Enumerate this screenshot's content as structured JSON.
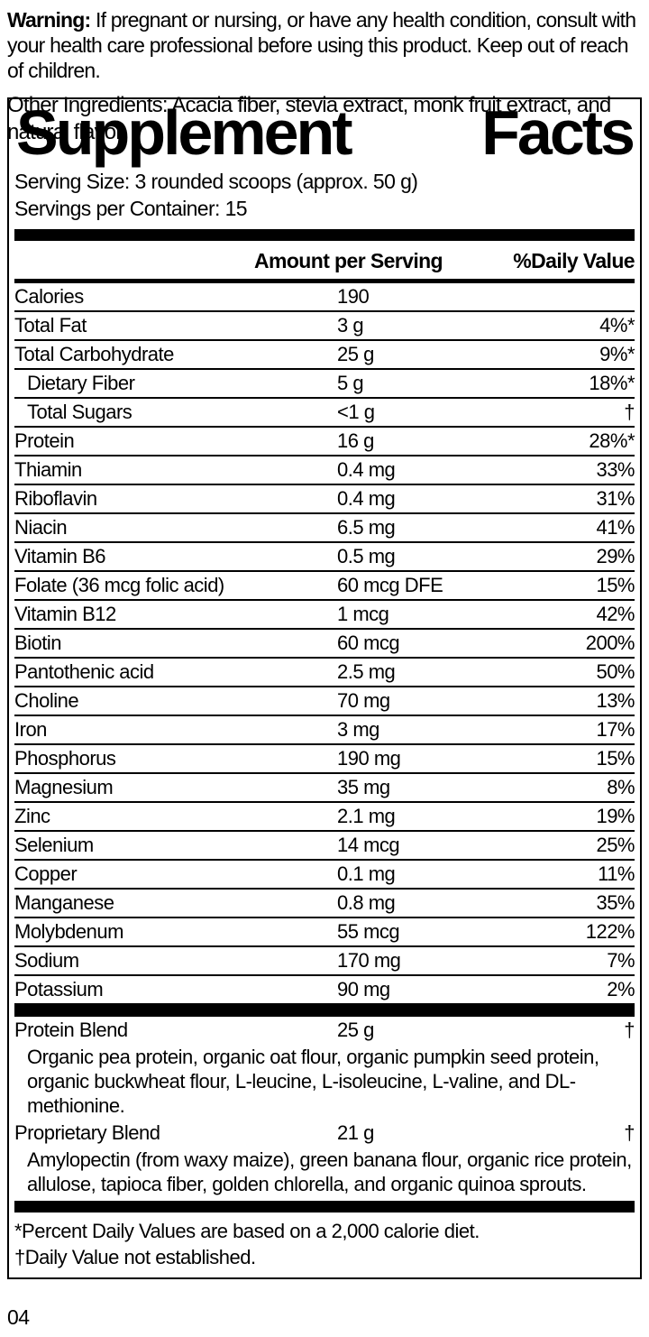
{
  "warning": {
    "label": "Warning:",
    "text": "If pregnant or nursing, or have any health condition, consult with your health care professional before using this product. Keep out of reach of children."
  },
  "panel": {
    "title_left": "Supplement",
    "title_right": "Facts",
    "serving_size": "Serving Size: 3 rounded scoops (approx. 50 g)",
    "servings_per_container": "Servings per Container: 15",
    "header": {
      "amount": "Amount per Serving",
      "daily_value": "%Daily Value"
    },
    "rows": [
      {
        "name": "Calories",
        "amount": "190",
        "dv": ""
      },
      {
        "name": "Total Fat",
        "amount": "3 g",
        "dv": "4%*"
      },
      {
        "name": "Total Carbohydrate",
        "amount": "25 g",
        "dv": "9%*"
      },
      {
        "name": "Dietary Fiber",
        "amount": "5 g",
        "dv": "18%*",
        "indent": true
      },
      {
        "name": "Total Sugars",
        "amount": "<1 g",
        "dv": "†",
        "indent": true
      },
      {
        "name": "Protein",
        "amount": "16 g",
        "dv": "28%*"
      },
      {
        "name": "Thiamin",
        "amount": "0.4 mg",
        "dv": "33%"
      },
      {
        "name": "Riboflavin",
        "amount": "0.4 mg",
        "dv": "31%"
      },
      {
        "name": "Niacin",
        "amount": "6.5 mg",
        "dv": "41%"
      },
      {
        "name": "Vitamin B6",
        "amount": "0.5 mg",
        "dv": "29%"
      },
      {
        "name": "Folate (36 mcg folic acid)",
        "amount": "60 mcg DFE",
        "dv": "15%"
      },
      {
        "name": "Vitamin B12",
        "amount": "1 mcg",
        "dv": "42%"
      },
      {
        "name": "Biotin",
        "amount": "60 mcg",
        "dv": "200%"
      },
      {
        "name": "Pantothenic acid",
        "amount": "2.5 mg",
        "dv": "50%"
      },
      {
        "name": "Choline",
        "amount": "70 mg",
        "dv": "13%"
      },
      {
        "name": "Iron",
        "amount": "3 mg",
        "dv": "17%"
      },
      {
        "name": "Phosphorus",
        "amount": "190 mg",
        "dv": "15%"
      },
      {
        "name": "Magnesium",
        "amount": "35 mg",
        "dv": "8%"
      },
      {
        "name": "Zinc",
        "amount": "2.1 mg",
        "dv": "19%"
      },
      {
        "name": "Selenium",
        "amount": "14 mcg",
        "dv": "25%"
      },
      {
        "name": "Copper",
        "amount": "0.1 mg",
        "dv": "11%"
      },
      {
        "name": "Manganese",
        "amount": "0.8 mg",
        "dv": "35%"
      },
      {
        "name": "Molybdenum",
        "amount": "55 mcg",
        "dv": "122%"
      },
      {
        "name": "Sodium",
        "amount": "170 mg",
        "dv": "7%"
      },
      {
        "name": "Potassium",
        "amount": "90 mg",
        "dv": "2%"
      }
    ],
    "blends": [
      {
        "name": "Protein Blend",
        "amount": "25 g",
        "dv": "†",
        "description": "Organic pea protein, organic oat flour, organic pumpkin seed protein, organic buckwheat flour, L-leucine, L-isoleucine, L-valine, and DL-methionine."
      },
      {
        "name": "Proprietary Blend",
        "amount": "21 g",
        "dv": "†",
        "description": "Amylopectin (from waxy maize), green banana flour, organic rice protein, allulose, tapioca fiber, golden chlorella, and organic quinoa sprouts."
      }
    ],
    "footnotes": {
      "asterisk": "*Percent Daily Values are based on a 2,000 calorie diet.",
      "dagger": "†Daily Value not established."
    }
  },
  "other_ingredients": "Other Ingredients: Acacia fiber, stevia extract, monk fruit extract, and natural flavor.",
  "page_number": "04",
  "colors": {
    "text": "#000000",
    "background": "#ffffff",
    "rule": "#000000"
  }
}
